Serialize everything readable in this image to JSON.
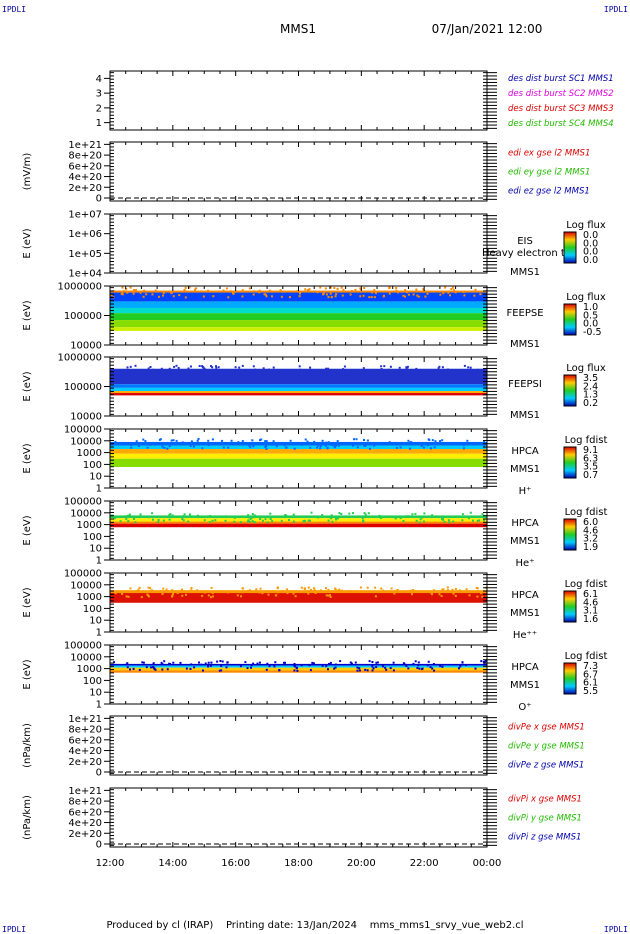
{
  "corners": [
    "IPDLI",
    "IPDLI",
    "IPDLI",
    "IPDLI"
  ],
  "header": {
    "title": "MMS1",
    "datetime": "07/Jan/2021 12:00"
  },
  "footer": "Produced by cl (IRAP)    Printing date: 13/Jan/2024    mms_mms1_srvy_vue_web2.cl",
  "colors": {
    "red": "#dd0000",
    "green": "#22bb00",
    "blue": "#0000aa",
    "magenta": "#dd00dd"
  },
  "chart_data": {
    "type": "heatmap",
    "x_range": [
      "12:00",
      "00:00"
    ],
    "x_ticks": [
      "12:00",
      "14:00",
      "16:00",
      "18:00",
      "20:00",
      "22:00",
      "00:00"
    ],
    "panels": [
      {
        "kind": "legend",
        "ylabel": "",
        "ylim": [
          0.5,
          4.5
        ],
        "ticks": [
          "4",
          "3",
          "2",
          "1"
        ],
        "legend": [
          {
            "label": "des dist burst SC1 MMS1",
            "color": "#0000aa"
          },
          {
            "label": "des dist burst SC2 MMS2",
            "color": "#dd00dd"
          },
          {
            "label": "des dist burst SC3 MMS3",
            "color": "#dd0000"
          },
          {
            "label": "des dist burst SC4 MMS4",
            "color": "#22bb00"
          }
        ]
      },
      {
        "kind": "legend",
        "ylabel": "(mV/m)",
        "ylim": [
          0,
          1.1e+21
        ],
        "ticks": [
          "1e+21",
          "8e+20",
          "6e+20",
          "4e+20",
          "2e+20",
          "0"
        ],
        "legend": [
          {
            "label": "edi ex gse l2 MMS1",
            "color": "#dd0000"
          },
          {
            "label": "edi ey gse l2 MMS1",
            "color": "#22bb00"
          },
          {
            "label": "edi ez gse l2 MMS1",
            "color": "#0000aa"
          }
        ]
      },
      {
        "kind": "spectrogram",
        "ylabel": "E (eV)",
        "ylim": [
          10000.0,
          10000000.0
        ],
        "ticks": [
          "1e+07",
          "1e+06",
          "1e+05",
          "1e+04"
        ],
        "instrument": [
          "EIS",
          "MMS1"
        ],
        "overlay": "Heavy electron to",
        "cbar_title": "Log flux",
        "cbar_ticks": [
          "0.0",
          "0.0",
          "0.0",
          "0.0"
        ],
        "bands": []
      },
      {
        "kind": "spectrogram",
        "ylabel": "E (eV)",
        "ylim": [
          10000.0,
          1000000.0
        ],
        "ticks": [
          "1000000",
          "100000",
          "10000"
        ],
        "instrument": [
          "FEEPSE",
          "MMS1"
        ],
        "cbar_title": "Log flux",
        "cbar_ticks": [
          "1.0",
          "0.5",
          "0.0",
          "-0.5"
        ],
        "bands": [
          {
            "from": 600000.0,
            "to": 700000.0,
            "color": "#ff8800"
          },
          {
            "from": 300000.0,
            "to": 600000.0,
            "color": "#0044ff"
          },
          {
            "from": 180000.0,
            "to": 300000.0,
            "color": "#00aaff"
          },
          {
            "from": 120000.0,
            "to": 180000.0,
            "color": "#00ddcc"
          },
          {
            "from": 70000.0,
            "to": 120000.0,
            "color": "#22cc22"
          },
          {
            "from": 40000.0,
            "to": 70000.0,
            "color": "#88dd00"
          },
          {
            "from": 30000.0,
            "to": 40000.0,
            "color": "#ccee00"
          }
        ]
      },
      {
        "kind": "spectrogram",
        "ylabel": "E (eV)",
        "ylim": [
          10000.0,
          1000000.0
        ],
        "ticks": [
          "1000000",
          "100000",
          "10000"
        ],
        "instrument": [
          "FEEPSI",
          "MMS1"
        ],
        "cbar_title": "Log flux",
        "cbar_ticks": [
          "3.5",
          "2.4",
          "1.3",
          "0.2"
        ],
        "bands": [
          {
            "from": 120000.0,
            "to": 400000.0,
            "color": "#2233cc"
          },
          {
            "from": 90000.0,
            "to": 120000.0,
            "color": "#0077ff"
          },
          {
            "from": 70000.0,
            "to": 90000.0,
            "color": "#00ccff"
          },
          {
            "from": 60000.0,
            "to": 70000.0,
            "color": "#ffaa00"
          },
          {
            "from": 50000.0,
            "to": 60000.0,
            "color": "#dd0000"
          }
        ]
      },
      {
        "kind": "spectrogram",
        "ylabel": "E (eV)",
        "ylim": [
          1,
          100000.0
        ],
        "ticks": [
          "100000",
          "10000",
          "1000",
          "100",
          "10",
          "1"
        ],
        "instrument": [
          "HPCA",
          "MMS1",
          "H⁺"
        ],
        "cbar_title": "Log fdist",
        "cbar_ticks": [
          "9.1",
          "6.3",
          "3.5",
          "0.7"
        ],
        "bands": [
          {
            "from": 4000,
            "to": 8000,
            "color": "#0066ff"
          },
          {
            "from": 2000,
            "to": 4000,
            "color": "#00ccff"
          },
          {
            "from": 800,
            "to": 2000,
            "color": "#ffaa00"
          },
          {
            "from": 300,
            "to": 800,
            "color": "#ffee00"
          },
          {
            "from": 60,
            "to": 300,
            "color": "#88dd00"
          }
        ]
      },
      {
        "kind": "spectrogram",
        "ylabel": "E (eV)",
        "ylim": [
          1,
          100000.0
        ],
        "ticks": [
          "100000",
          "10000",
          "1000",
          "100",
          "10",
          "1"
        ],
        "instrument": [
          "HPCA",
          "MMS1",
          "He⁺"
        ],
        "cbar_title": "Log fdist",
        "cbar_ticks": [
          "6.0",
          "4.6",
          "3.2",
          "1.9"
        ],
        "bands": [
          {
            "from": 3500,
            "to": 6000,
            "color": "#22cc55"
          },
          {
            "from": 1800,
            "to": 3500,
            "color": "#ffee00"
          },
          {
            "from": 1200,
            "to": 1800,
            "color": "#ff8800"
          },
          {
            "from": 600,
            "to": 1200,
            "color": "#dd0000"
          }
        ]
      },
      {
        "kind": "spectrogram",
        "ylabel": "E (eV)",
        "ylim": [
          1,
          100000.0
        ],
        "ticks": [
          "100000",
          "10000",
          "1000",
          "100",
          "10",
          "1"
        ],
        "instrument": [
          "HPCA",
          "MMS1",
          "He⁺⁺"
        ],
        "cbar_title": "Log fdist",
        "cbar_ticks": [
          "6.1",
          "4.6",
          "3.1",
          "1.6"
        ],
        "bands": [
          {
            "from": 2000,
            "to": 3500,
            "color": "#ff9900"
          },
          {
            "from": 300,
            "to": 2000,
            "color": "#dd1100"
          }
        ]
      },
      {
        "kind": "spectrogram",
        "ylabel": "E (eV)",
        "ylim": [
          1,
          100000.0
        ],
        "ticks": [
          "100000",
          "10000",
          "1000",
          "100",
          "10",
          "1"
        ],
        "instrument": [
          "HPCA",
          "MMS1",
          "O⁺"
        ],
        "cbar_title": "Log fdist",
        "cbar_ticks": [
          "7.3",
          "6.7",
          "6.1",
          "5.5"
        ],
        "bands": [
          {
            "from": 1800,
            "to": 2500,
            "color": "#0000cc"
          },
          {
            "from": 1200,
            "to": 1800,
            "color": "#00ccff"
          },
          {
            "from": 700,
            "to": 1200,
            "color": "#ffcc00"
          },
          {
            "from": 450,
            "to": 700,
            "color": "#ff8800"
          }
        ]
      },
      {
        "kind": "legend",
        "ylabel": "(nPa/km)",
        "ylim": [
          0,
          1.1e+21
        ],
        "ticks": [
          "1e+21",
          "8e+20",
          "6e+20",
          "4e+20",
          "2e+20",
          "0"
        ],
        "legend": [
          {
            "label": "divPe x gse MMS1",
            "color": "#dd0000"
          },
          {
            "label": "divPe y gse MMS1",
            "color": "#22bb00"
          },
          {
            "label": "divPe z gse MMS1",
            "color": "#0000aa"
          }
        ]
      },
      {
        "kind": "legend",
        "ylabel": "(nPa/km)",
        "ylim": [
          0,
          1.1e+21
        ],
        "ticks": [
          "1e+21",
          "8e+20",
          "6e+20",
          "4e+20",
          "2e+20",
          "0"
        ],
        "legend": [
          {
            "label": "divPi x gse MMS1",
            "color": "#dd0000"
          },
          {
            "label": "divPi y gse MMS1",
            "color": "#22bb00"
          },
          {
            "label": "divPi z gse MMS1",
            "color": "#0000aa"
          }
        ]
      }
    ]
  }
}
